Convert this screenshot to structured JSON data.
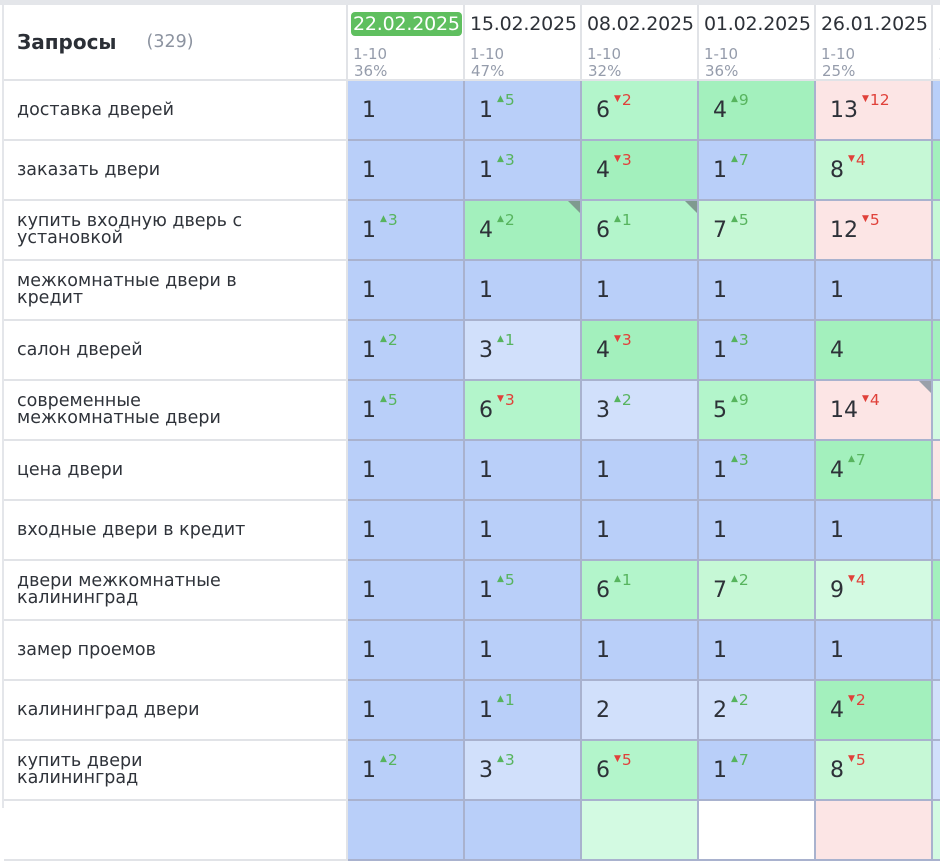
{
  "header": {
    "title": "Запросы",
    "count": "(329)",
    "columns": [
      {
        "date": "22.02.2025",
        "active": true,
        "range": "1-10",
        "pct": "36%"
      },
      {
        "date": "15.02.2025",
        "active": false,
        "range": "1-10",
        "pct": "47%"
      },
      {
        "date": "08.02.2025",
        "active": false,
        "range": "1-10",
        "pct": "32%"
      },
      {
        "date": "01.02.2025",
        "active": false,
        "range": "1-10",
        "pct": "36%"
      },
      {
        "date": "26.01.2025",
        "active": false,
        "range": "1-10",
        "pct": "25%"
      },
      {
        "date": "",
        "active": false,
        "range": "1",
        "pct": ""
      }
    ]
  },
  "colors": {
    "active_date": "#5fbf5f",
    "up": "#57b45e",
    "down": "#e0413a",
    "top1": "#b9cff9",
    "top3": "#d1e0fb",
    "top5": "#a3f0bd",
    "top10": "#b3f5cb",
    "top10_light": "#c6f8d6",
    "out": "#fce5e5"
  },
  "rows": [
    {
      "query": "доставка дверей",
      "cells": [
        {
          "pos": "1",
          "delta": "",
          "dir": "",
          "bg": "c-blue"
        },
        {
          "pos": "1",
          "delta": "5",
          "dir": "up",
          "bg": "c-blue"
        },
        {
          "pos": "6",
          "delta": "2",
          "dir": "down",
          "bg": "c-mgreen"
        },
        {
          "pos": "4",
          "delta": "9",
          "dir": "up",
          "bg": "c-green"
        },
        {
          "pos": "13",
          "delta": "12",
          "dir": "down",
          "bg": "c-pink"
        },
        {
          "pos": "",
          "delta": "",
          "dir": "",
          "bg": "c-blue"
        }
      ]
    },
    {
      "query": "заказать двери",
      "cells": [
        {
          "pos": "1",
          "delta": "",
          "dir": "",
          "bg": "c-blue"
        },
        {
          "pos": "1",
          "delta": "3",
          "dir": "up",
          "bg": "c-blue"
        },
        {
          "pos": "4",
          "delta": "3",
          "dir": "down",
          "bg": "c-green"
        },
        {
          "pos": "1",
          "delta": "7",
          "dir": "up",
          "bg": "c-blue"
        },
        {
          "pos": "8",
          "delta": "4",
          "dir": "down",
          "bg": "c-lgreen"
        },
        {
          "pos": "",
          "delta": "",
          "dir": "",
          "bg": "c-green"
        }
      ]
    },
    {
      "query": "купить входную дверь с установкой",
      "cells": [
        {
          "pos": "1",
          "delta": "3",
          "dir": "up",
          "bg": "c-blue"
        },
        {
          "pos": "4",
          "delta": "2",
          "dir": "up",
          "bg": "c-green",
          "corner": "green"
        },
        {
          "pos": "6",
          "delta": "1",
          "dir": "up",
          "bg": "c-mgreen",
          "corner": "green"
        },
        {
          "pos": "7",
          "delta": "5",
          "dir": "up",
          "bg": "c-lgreen"
        },
        {
          "pos": "12",
          "delta": "5",
          "dir": "down",
          "bg": "c-pink"
        },
        {
          "pos": "",
          "delta": "",
          "dir": "",
          "bg": "c-lgreen"
        }
      ]
    },
    {
      "query": "межкомнатные двери в кредит",
      "cells": [
        {
          "pos": "1",
          "delta": "",
          "dir": "",
          "bg": "c-blue"
        },
        {
          "pos": "1",
          "delta": "",
          "dir": "",
          "bg": "c-blue"
        },
        {
          "pos": "1",
          "delta": "",
          "dir": "",
          "bg": "c-blue"
        },
        {
          "pos": "1",
          "delta": "",
          "dir": "",
          "bg": "c-blue"
        },
        {
          "pos": "1",
          "delta": "",
          "dir": "",
          "bg": "c-blue"
        },
        {
          "pos": "",
          "delta": "",
          "dir": "",
          "bg": "c-blue"
        }
      ]
    },
    {
      "query": "салон дверей",
      "cells": [
        {
          "pos": "1",
          "delta": "2",
          "dir": "up",
          "bg": "c-blue"
        },
        {
          "pos": "3",
          "delta": "1",
          "dir": "up",
          "bg": "c-lblue"
        },
        {
          "pos": "4",
          "delta": "3",
          "dir": "down",
          "bg": "c-green"
        },
        {
          "pos": "1",
          "delta": "3",
          "dir": "up",
          "bg": "c-blue"
        },
        {
          "pos": "4",
          "delta": "",
          "dir": "",
          "bg": "c-green"
        },
        {
          "pos": "",
          "delta": "",
          "dir": "",
          "bg": "c-green"
        }
      ]
    },
    {
      "query": "современные межкомнатные двери",
      "cells": [
        {
          "pos": "1",
          "delta": "5",
          "dir": "up",
          "bg": "c-blue"
        },
        {
          "pos": "6",
          "delta": "3",
          "dir": "down",
          "bg": "c-mgreen"
        },
        {
          "pos": "3",
          "delta": "2",
          "dir": "up",
          "bg": "c-lblue"
        },
        {
          "pos": "5",
          "delta": "9",
          "dir": "up",
          "bg": "c-mgreen"
        },
        {
          "pos": "14",
          "delta": "4",
          "dir": "down",
          "bg": "c-pink",
          "corner": "grey"
        },
        {
          "pos": "",
          "delta": "",
          "dir": "",
          "bg": "c-pgreen"
        }
      ]
    },
    {
      "query": "цена двери",
      "cells": [
        {
          "pos": "1",
          "delta": "",
          "dir": "",
          "bg": "c-blue"
        },
        {
          "pos": "1",
          "delta": "",
          "dir": "",
          "bg": "c-blue"
        },
        {
          "pos": "1",
          "delta": "",
          "dir": "",
          "bg": "c-blue"
        },
        {
          "pos": "1",
          "delta": "3",
          "dir": "up",
          "bg": "c-blue"
        },
        {
          "pos": "4",
          "delta": "7",
          "dir": "up",
          "bg": "c-green"
        },
        {
          "pos": "",
          "delta": "",
          "dir": "",
          "bg": "c-pink"
        }
      ]
    },
    {
      "query": "входные двери в кредит",
      "cells": [
        {
          "pos": "1",
          "delta": "",
          "dir": "",
          "bg": "c-blue"
        },
        {
          "pos": "1",
          "delta": "",
          "dir": "",
          "bg": "c-blue"
        },
        {
          "pos": "1",
          "delta": "",
          "dir": "",
          "bg": "c-blue"
        },
        {
          "pos": "1",
          "delta": "",
          "dir": "",
          "bg": "c-blue"
        },
        {
          "pos": "1",
          "delta": "",
          "dir": "",
          "bg": "c-blue"
        },
        {
          "pos": "",
          "delta": "",
          "dir": "",
          "bg": "c-blue"
        }
      ]
    },
    {
      "query": "двери межкомнатные калининград",
      "cells": [
        {
          "pos": "1",
          "delta": "",
          "dir": "",
          "bg": "c-blue"
        },
        {
          "pos": "1",
          "delta": "5",
          "dir": "up",
          "bg": "c-blue"
        },
        {
          "pos": "6",
          "delta": "1",
          "dir": "up",
          "bg": "c-mgreen"
        },
        {
          "pos": "7",
          "delta": "2",
          "dir": "up",
          "bg": "c-lgreen"
        },
        {
          "pos": "9",
          "delta": "4",
          "dir": "down",
          "bg": "c-pgreen"
        },
        {
          "pos": "",
          "delta": "",
          "dir": "",
          "bg": "c-green"
        }
      ]
    },
    {
      "query": "замер проемов",
      "cells": [
        {
          "pos": "1",
          "delta": "",
          "dir": "",
          "bg": "c-blue"
        },
        {
          "pos": "1",
          "delta": "",
          "dir": "",
          "bg": "c-blue"
        },
        {
          "pos": "1",
          "delta": "",
          "dir": "",
          "bg": "c-blue"
        },
        {
          "pos": "1",
          "delta": "",
          "dir": "",
          "bg": "c-blue"
        },
        {
          "pos": "1",
          "delta": "",
          "dir": "",
          "bg": "c-blue"
        },
        {
          "pos": "",
          "delta": "",
          "dir": "",
          "bg": "c-blue"
        }
      ]
    },
    {
      "query": "калининград двери",
      "cells": [
        {
          "pos": "1",
          "delta": "",
          "dir": "",
          "bg": "c-blue"
        },
        {
          "pos": "1",
          "delta": "1",
          "dir": "up",
          "bg": "c-blue"
        },
        {
          "pos": "2",
          "delta": "",
          "dir": "",
          "bg": "c-lblue"
        },
        {
          "pos": "2",
          "delta": "2",
          "dir": "up",
          "bg": "c-lblue"
        },
        {
          "pos": "4",
          "delta": "2",
          "dir": "down",
          "bg": "c-green"
        },
        {
          "pos": "",
          "delta": "",
          "dir": "",
          "bg": "c-lblue"
        }
      ]
    },
    {
      "query": "купить двери калининград",
      "cells": [
        {
          "pos": "1",
          "delta": "2",
          "dir": "up",
          "bg": "c-blue"
        },
        {
          "pos": "3",
          "delta": "3",
          "dir": "up",
          "bg": "c-lblue"
        },
        {
          "pos": "6",
          "delta": "5",
          "dir": "down",
          "bg": "c-mgreen"
        },
        {
          "pos": "1",
          "delta": "7",
          "dir": "up",
          "bg": "c-blue"
        },
        {
          "pos": "8",
          "delta": "5",
          "dir": "down",
          "bg": "c-lgreen"
        },
        {
          "pos": "",
          "delta": "",
          "dir": "",
          "bg": "c-lblue"
        }
      ]
    },
    {
      "query": "",
      "cells": [
        {
          "pos": "",
          "delta": "",
          "dir": "",
          "bg": "c-blue"
        },
        {
          "pos": "",
          "delta": "",
          "dir": "",
          "bg": "c-blue"
        },
        {
          "pos": "",
          "delta": "",
          "dir": "",
          "bg": "c-pgreen"
        },
        {
          "pos": "",
          "delta": "",
          "dir": "",
          "bg": "c-white"
        },
        {
          "pos": "",
          "delta": "",
          "dir": "",
          "bg": "c-pink"
        },
        {
          "pos": "",
          "delta": "",
          "dir": "",
          "bg": "c-pgreen"
        }
      ]
    }
  ]
}
